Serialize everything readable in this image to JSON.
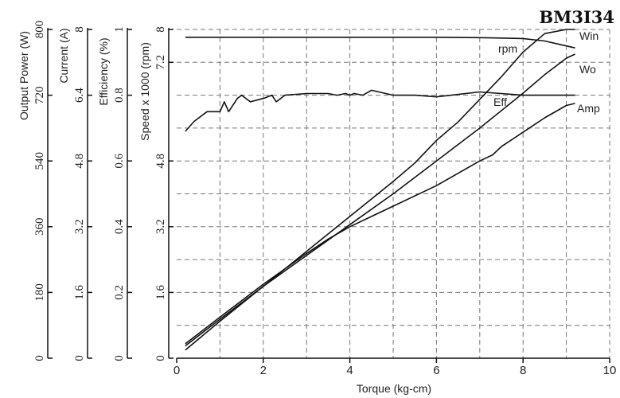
{
  "chart_data": {
    "type": "line",
    "title": "BM3I34",
    "xlabel": "Torque (kg-cm)",
    "xlim": [
      0,
      10
    ],
    "x_ticks": [
      "0",
      "2",
      "4",
      "6",
      "8",
      "10"
    ],
    "grid": true,
    "y_axes": [
      {
        "label": "Output Power (W)",
        "ylim": [
          0,
          800
        ],
        "ticks": [
          "0",
          "180",
          "360",
          "540",
          "720",
          "800"
        ]
      },
      {
        "label": "Current (A)",
        "ylim": [
          0,
          8
        ],
        "ticks": [
          "0",
          "1.6",
          "3.2",
          "4.8",
          "6.4",
          "8"
        ]
      },
      {
        "label": "Efficiency (%)",
        "ylim": [
          0,
          1
        ],
        "ticks": [
          "0",
          "0.2",
          "0.4",
          "0.6",
          "0.8",
          "1"
        ]
      },
      {
        "label": "Speed x 1000 (rpm)",
        "ylim": [
          0,
          8
        ],
        "ticks": [
          "0",
          "1.6",
          "3.2",
          "4.8",
          "7.2",
          "8"
        ]
      }
    ],
    "series": [
      {
        "name": "Win",
        "x": [
          0.2,
          1,
          2,
          3,
          4,
          5,
          5.5,
          6,
          6.5,
          7,
          7.5,
          8,
          8.5,
          9,
          9.2
        ],
        "y": [
          0.2,
          0.9,
          1.75,
          2.6,
          3.45,
          4.3,
          4.75,
          5.3,
          5.75,
          6.3,
          6.85,
          7.45,
          7.9,
          8.0,
          8.0
        ]
      },
      {
        "name": "Wo",
        "x": [
          0.2,
          1,
          2,
          3,
          4,
          5,
          6,
          7,
          8,
          8.5,
          9,
          9.2
        ],
        "y": [
          0.3,
          0.95,
          1.75,
          2.5,
          3.25,
          4.0,
          4.8,
          5.6,
          6.45,
          6.9,
          7.3,
          7.4
        ]
      },
      {
        "name": "Amp",
        "x": [
          0.2,
          1,
          2,
          3,
          3.5,
          4,
          4.5,
          5,
          6,
          7,
          7.3,
          7.5,
          8,
          8.5,
          9,
          9.2
        ],
        "y": [
          0.35,
          1.0,
          1.8,
          2.55,
          2.9,
          3.2,
          3.45,
          3.7,
          4.2,
          4.8,
          4.95,
          5.15,
          5.5,
          5.85,
          6.15,
          6.2
        ]
      },
      {
        "name": "Eff",
        "x": [
          0.2,
          0.4,
          0.7,
          1.0,
          1.1,
          1.2,
          1.4,
          1.5,
          1.7,
          2.0,
          2.2,
          2.3,
          2.5,
          3.0,
          3.5,
          3.7,
          3.9,
          4.0,
          4.1,
          4.3,
          4.5,
          5.0,
          5.5,
          6.0,
          7.0,
          8.0,
          9.2
        ],
        "y": [
          0.69,
          0.72,
          0.75,
          0.75,
          0.78,
          0.75,
          0.79,
          0.8,
          0.78,
          0.79,
          0.8,
          0.78,
          0.8,
          0.805,
          0.805,
          0.8,
          0.805,
          0.8,
          0.805,
          0.8,
          0.815,
          0.8,
          0.8,
          0.795,
          0.81,
          0.8,
          0.8
        ]
      },
      {
        "name": "rpm",
        "x": [
          0.2,
          1,
          2,
          3,
          4,
          5,
          6,
          7,
          8,
          8.5,
          9,
          9.2
        ],
        "y": [
          7.81,
          7.81,
          7.81,
          7.81,
          7.81,
          7.81,
          7.81,
          7.8,
          7.78,
          7.72,
          7.6,
          7.55
        ]
      }
    ]
  }
}
